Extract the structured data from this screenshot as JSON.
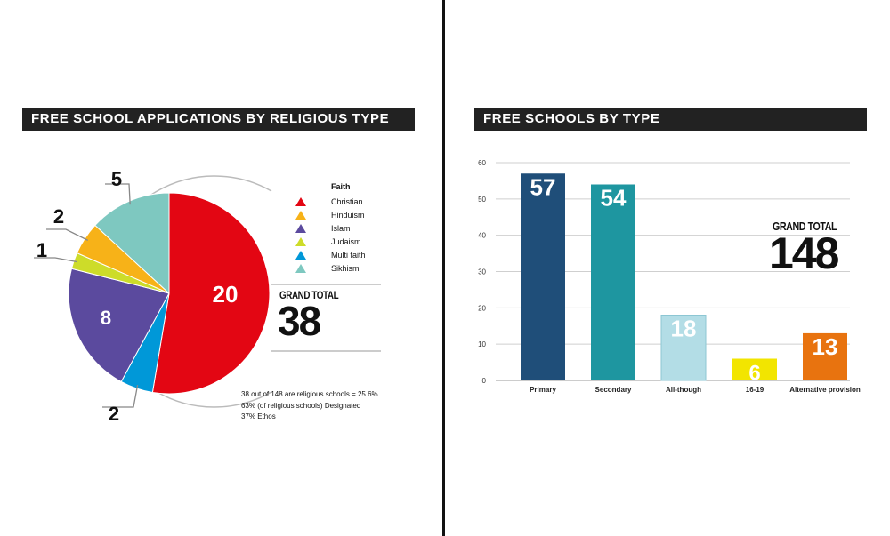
{
  "left_panel": {
    "title": "FREE SCHOOL APPLICATIONS BY RELIGIOUS TYPE",
    "legend_title": "Faith",
    "grand_total_label": "GRAND TOTAL",
    "grand_total_value": "38",
    "notes": [
      "38 out of 148 are religious schools = 25.6%",
      "63% (of religious schools) Designated",
      "37%  Ethos"
    ]
  },
  "right_panel": {
    "title": "FREE SCHOOLS BY TYPE",
    "grand_total_label": "GRAND TOTAL",
    "grand_total_value": "148"
  },
  "chart_data": [
    {
      "type": "pie",
      "title": "FREE SCHOOL APPLICATIONS BY RELIGIOUS TYPE",
      "slices": [
        {
          "label": "Christian",
          "value": 20,
          "color": "#e30613"
        },
        {
          "label": "Hinduism",
          "value": 2,
          "color": "#0098d8"
        },
        {
          "label": "Islam",
          "value": 8,
          "color": "#5b4a9e"
        },
        {
          "label": "Judaism",
          "value": 1,
          "color": "#cddc29"
        },
        {
          "label": "Multi faith",
          "value": 2,
          "color": "#f7b218"
        },
        {
          "label": "Sikhism",
          "value": 5,
          "color": "#7ec8c0"
        }
      ],
      "legend": [
        {
          "label": "Christian",
          "color": "#e30613"
        },
        {
          "label": "Hinduism",
          "color": "#f7b218"
        },
        {
          "label": "Islam",
          "color": "#5b4a9e"
        },
        {
          "label": "Judaism",
          "color": "#cddc29"
        },
        {
          "label": "Multi faith",
          "color": "#0098d8"
        },
        {
          "label": "Sikhism",
          "color": "#7ec8c0"
        }
      ]
    },
    {
      "type": "bar",
      "title": "FREE SCHOOLS BY TYPE",
      "categories": [
        "Primary",
        "Secondary",
        "All-though",
        "16-19",
        "Alternative provision"
      ],
      "values": [
        57,
        54,
        18,
        6,
        13
      ],
      "colors": [
        "#1f4e79",
        "#1e96a0",
        "#b3dde6",
        "#f2e500",
        "#e8730f"
      ],
      "ylim": [
        0,
        60
      ],
      "yticks": [
        0,
        10,
        20,
        30,
        40,
        50,
        60
      ],
      "grid": true
    }
  ]
}
